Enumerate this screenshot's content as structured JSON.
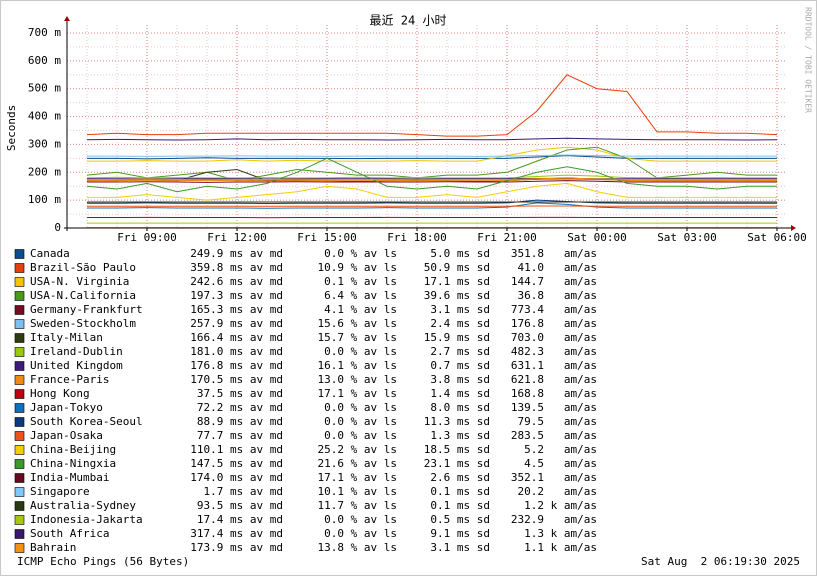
{
  "chart_data": {
    "type": "line",
    "title": "最近 24 小时",
    "y_label": "Seconds",
    "side_note": "RRDTOOL / TOBI OETIKER",
    "footer_left": "ICMP Echo Pings (56 Bytes)",
    "footer_right": "Sat Aug  2 06:19:30 2025",
    "grid": true,
    "ylim": [
      0,
      0.7
    ],
    "yticks": [
      0,
      {
        "value": 0.1,
        "label": "100 m"
      },
      {
        "value": 0.2,
        "label": "200 m"
      },
      {
        "value": 0.3,
        "label": "300 m"
      },
      {
        "value": 0.4,
        "label": "400 m"
      },
      {
        "value": 0.5,
        "label": "500 m"
      },
      {
        "value": 0.6,
        "label": "600 m"
      },
      {
        "value": 0.7,
        "label": "700 m"
      }
    ],
    "categories": [
      null,
      null,
      "Fri 09:00",
      null,
      null,
      "Fri 12:00",
      null,
      null,
      "Fri 15:00",
      null,
      null,
      "Fri 18:00",
      null,
      null,
      "Fri 21:00",
      null,
      null,
      "Sat 00:00",
      null,
      null,
      "Sat 03:00",
      null,
      null,
      "Sat 06:00"
    ],
    "series": [
      {
        "name": "Canada",
        "color": "#0a4d8c",
        "stats": [
          "249.9 ms av md",
          "0.0 % av ls",
          "5.0 ms sd",
          "351.8   am/as"
        ],
        "values": [
          0.25,
          0.25,
          0.248,
          0.25,
          0.252,
          0.25,
          0.25,
          0.25,
          0.25,
          0.249,
          0.25,
          0.25,
          0.25,
          0.25,
          0.25,
          0.255,
          0.26,
          0.255,
          0.25,
          0.25,
          0.25,
          0.25,
          0.25,
          0.25
        ]
      },
      {
        "name": "Brazil-São Paulo",
        "color": "#e8400a",
        "stats": [
          "359.8 ms av md",
          "10.9 % av ls",
          "50.9 ms sd",
          "41.0   am/as"
        ],
        "values": [
          0.335,
          0.34,
          0.335,
          0.335,
          0.34,
          0.34,
          0.34,
          0.34,
          0.34,
          0.34,
          0.34,
          0.335,
          0.33,
          0.33,
          0.335,
          0.42,
          0.55,
          0.5,
          0.49,
          0.345,
          0.345,
          0.34,
          0.34,
          0.335
        ]
      },
      {
        "name": "USA-N. Virginia",
        "color": "#f5c400",
        "stats": [
          "242.6 ms av md",
          "0.1 % av ls",
          "17.1 ms sd",
          "144.7   am/as"
        ],
        "values": [
          0.24,
          0.24,
          0.242,
          0.24,
          0.24,
          0.245,
          0.24,
          0.243,
          0.24,
          0.24,
          0.24,
          0.242,
          0.24,
          0.24,
          0.26,
          0.28,
          0.29,
          0.28,
          0.25,
          0.24,
          0.24,
          0.24,
          0.24,
          0.24
        ]
      },
      {
        "name": "USA-N.California",
        "color": "#4a9a1a",
        "stats": [
          "197.3 ms av md",
          "6.4 % av ls",
          "39.6 ms sd",
          "36.8   am/as"
        ],
        "values": [
          0.19,
          0.2,
          0.18,
          0.19,
          0.2,
          0.17,
          0.19,
          0.21,
          0.2,
          0.19,
          0.19,
          0.18,
          0.19,
          0.19,
          0.2,
          0.24,
          0.28,
          0.29,
          0.25,
          0.18,
          0.19,
          0.2,
          0.19,
          0.19
        ]
      },
      {
        "name": "Germany-Frankfurt",
        "color": "#7a0a22",
        "stats": [
          "165.3 ms av md",
          "4.1 % av ls",
          "3.1 ms sd",
          "773.4   am/as"
        ],
        "values": [
          0.165,
          0.165,
          0.166,
          0.165,
          0.164,
          0.165,
          0.165,
          0.166,
          0.165,
          0.165,
          0.165,
          0.165,
          0.166,
          0.165,
          0.165,
          0.168,
          0.17,
          0.168,
          0.165,
          0.165,
          0.165,
          0.165,
          0.165,
          0.165
        ]
      },
      {
        "name": "Sweden-Stockholm",
        "color": "#7cc0f0",
        "stats": [
          "257.9 ms av md",
          "15.6 % av ls",
          "2.4 ms sd",
          "176.8   am/as"
        ],
        "values": [
          0.258,
          0.258,
          0.257,
          0.258,
          0.258,
          0.259,
          0.258,
          0.258,
          0.257,
          0.258,
          0.258,
          0.258,
          0.258,
          0.257,
          0.258,
          0.26,
          0.262,
          0.26,
          0.258,
          0.258,
          0.258,
          0.258,
          0.258,
          0.258
        ]
      },
      {
        "name": "Italy-Milan",
        "color": "#2e3d10",
        "stats": [
          "166.4 ms av md",
          "15.7 % av ls",
          "15.9 ms sd",
          "703.0   am/as"
        ],
        "values": [
          0.17,
          0.17,
          0.175,
          0.17,
          0.2,
          0.21,
          0.17,
          0.17,
          0.17,
          0.168,
          0.17,
          0.17,
          0.17,
          0.168,
          0.17,
          0.175,
          0.18,
          0.175,
          0.17,
          0.17,
          0.17,
          0.17,
          0.17,
          0.17
        ]
      },
      {
        "name": "Ireland-Dublin",
        "color": "#9ac80a",
        "stats": [
          "181.0 ms av md",
          "0.0 % av ls",
          "2.7 ms sd",
          "482.3   am/as"
        ],
        "values": [
          0.18,
          0.182,
          0.18,
          0.181,
          0.18,
          0.18,
          0.181,
          0.18,
          0.18,
          0.182,
          0.18,
          0.181,
          0.18,
          0.18,
          0.18,
          0.185,
          0.19,
          0.186,
          0.181,
          0.18,
          0.18,
          0.181,
          0.18,
          0.18
        ]
      },
      {
        "name": "United Kingdom",
        "color": "#3c1a80",
        "stats": [
          "176.8 ms av md",
          "16.1 % av ls",
          "0.7 ms sd",
          "631.1   am/as"
        ],
        "values": [
          0.177,
          0.177,
          0.176,
          0.177,
          0.177,
          0.177,
          0.176,
          0.177,
          0.177,
          0.177,
          0.177,
          0.176,
          0.177,
          0.177,
          0.177,
          0.178,
          0.178,
          0.177,
          0.177,
          0.177,
          0.177,
          0.177,
          0.177,
          0.177
        ]
      },
      {
        "name": "France-Paris",
        "color": "#f08a10",
        "stats": [
          "170.5 ms av md",
          "13.0 % av ls",
          "3.8 ms sd",
          "621.8   am/as"
        ],
        "values": [
          0.17,
          0.171,
          0.17,
          0.17,
          0.171,
          0.17,
          0.17,
          0.171,
          0.17,
          0.17,
          0.17,
          0.171,
          0.17,
          0.17,
          0.17,
          0.175,
          0.178,
          0.174,
          0.171,
          0.17,
          0.17,
          0.17,
          0.171,
          0.17
        ]
      },
      {
        "name": "Hong Kong",
        "color": "#c00010",
        "stats": [
          "37.5 ms av md",
          "17.1 % av ls",
          "1.4 ms sd",
          "168.8   am/as"
        ],
        "values": [
          0.0375,
          0.0375,
          0.038,
          0.0375,
          0.0375,
          0.0375,
          0.037,
          0.0375,
          0.0375,
          0.0375,
          0.038,
          0.0375,
          0.0375,
          0.0375,
          0.0375,
          0.038,
          0.038,
          0.0375,
          0.0375,
          0.0375,
          0.0375,
          0.0375,
          0.0375,
          0.0375
        ]
      },
      {
        "name": "Japan-Tokyo",
        "color": "#1070c0",
        "stats": [
          "72.2 ms av md",
          "0.0 % av ls",
          "8.0 ms sd",
          "139.5   am/as"
        ],
        "values": [
          0.072,
          0.072,
          0.073,
          0.072,
          0.072,
          0.072,
          0.071,
          0.072,
          0.072,
          0.072,
          0.073,
          0.072,
          0.072,
          0.072,
          0.075,
          0.09,
          0.085,
          0.075,
          0.072,
          0.072,
          0.072,
          0.072,
          0.072,
          0.072
        ]
      },
      {
        "name": "South Korea-Seoul",
        "color": "#0a3a80",
        "stats": [
          "88.9 ms av md",
          "0.0 % av ls",
          "11.3 ms sd",
          "79.5   am/as"
        ],
        "values": [
          0.089,
          0.089,
          0.09,
          0.089,
          0.089,
          0.089,
          0.088,
          0.089,
          0.089,
          0.089,
          0.09,
          0.089,
          0.089,
          0.089,
          0.09,
          0.1,
          0.095,
          0.09,
          0.089,
          0.089,
          0.089,
          0.089,
          0.089,
          0.089
        ]
      },
      {
        "name": "Japan-Osaka",
        "color": "#f0501a",
        "stats": [
          "77.7 ms av md",
          "0.0 % av ls",
          "1.3 ms sd",
          "283.5   am/as"
        ],
        "values": [
          0.078,
          0.078,
          0.078,
          0.078,
          0.078,
          0.078,
          0.078,
          0.078,
          0.078,
          0.078,
          0.078,
          0.078,
          0.078,
          0.078,
          0.078,
          0.079,
          0.079,
          0.078,
          0.078,
          0.078,
          0.078,
          0.078,
          0.078,
          0.078
        ]
      },
      {
        "name": "China-Beijing",
        "color": "#f2d000",
        "stats": [
          "110.1 ms av md",
          "25.2 % av ls",
          "18.5 ms sd",
          "5.2   am/as"
        ],
        "values": [
          0.11,
          0.11,
          0.12,
          0.11,
          0.1,
          0.11,
          0.12,
          0.13,
          0.15,
          0.14,
          0.11,
          0.11,
          0.12,
          0.11,
          0.13,
          0.15,
          0.16,
          0.13,
          0.11,
          0.11,
          0.11,
          0.11,
          0.11,
          0.11
        ]
      },
      {
        "name": "China-Ningxia",
        "color": "#3a9a2a",
        "stats": [
          "147.5 ms av md",
          "21.6 % av ls",
          "23.1 ms sd",
          "4.5   am/as"
        ],
        "values": [
          0.15,
          0.14,
          0.16,
          0.13,
          0.15,
          0.14,
          0.16,
          0.2,
          0.25,
          0.2,
          0.15,
          0.14,
          0.15,
          0.14,
          0.17,
          0.2,
          0.22,
          0.2,
          0.16,
          0.15,
          0.15,
          0.14,
          0.15,
          0.15
        ]
      },
      {
        "name": "India-Mumbai",
        "color": "#6a0a20",
        "stats": [
          "174.0 ms av md",
          "17.1 % av ls",
          "2.6 ms sd",
          "352.1   am/as"
        ],
        "values": [
          0.174,
          0.174,
          0.175,
          0.174,
          0.174,
          0.174,
          0.173,
          0.174,
          0.174,
          0.174,
          0.175,
          0.174,
          0.174,
          0.174,
          0.174,
          0.176,
          0.177,
          0.175,
          0.174,
          0.174,
          0.174,
          0.174,
          0.174,
          0.174
        ]
      },
      {
        "name": "Singapore",
        "color": "#80c8f8",
        "stats": [
          "1.7 ms av md",
          "10.1 % av ls",
          "0.1 ms sd",
          "20.2   am/as"
        ],
        "values": [
          0.0017,
          0.0017,
          0.0017,
          0.0017,
          0.0017,
          0.0017,
          0.0017,
          0.0017,
          0.0017,
          0.0017,
          0.0017,
          0.0017,
          0.0017,
          0.0017,
          0.0017,
          0.0017,
          0.0017,
          0.0017,
          0.0017,
          0.0017,
          0.0017,
          0.0017,
          0.0017,
          0.0017
        ]
      },
      {
        "name": "Australia-Sydney",
        "color": "#2a3a10",
        "stats": [
          "93.5 ms av md",
          "11.7 % av ls",
          "0.1 ms sd",
          "1.2 k am/as"
        ],
        "values": [
          0.0935,
          0.0935,
          0.0935,
          0.0935,
          0.0935,
          0.0935,
          0.0935,
          0.0935,
          0.0935,
          0.0935,
          0.0935,
          0.0935,
          0.0935,
          0.0935,
          0.0935,
          0.0935,
          0.0935,
          0.0935,
          0.0935,
          0.0935,
          0.0935,
          0.0935,
          0.0935,
          0.0935
        ]
      },
      {
        "name": "Indonesia-Jakarta",
        "color": "#a8c810",
        "stats": [
          "17.4 ms av md",
          "0.0 % av ls",
          "0.5 ms sd",
          "232.9   am/as"
        ],
        "values": [
          0.0174,
          0.0174,
          0.0174,
          0.0174,
          0.0174,
          0.0174,
          0.0174,
          0.0174,
          0.0174,
          0.0174,
          0.0174,
          0.0174,
          0.0174,
          0.0174,
          0.0174,
          0.0174,
          0.0174,
          0.0174,
          0.0174,
          0.0174,
          0.0174,
          0.0174,
          0.0174,
          0.0174
        ]
      },
      {
        "name": "South Africa",
        "color": "#3a1670",
        "stats": [
          "317.4 ms av md",
          "0.0 % av ls",
          "9.1 ms sd",
          "1.3 k am/as"
        ],
        "values": [
          0.317,
          0.318,
          0.317,
          0.316,
          0.317,
          0.32,
          0.317,
          0.318,
          0.317,
          0.317,
          0.316,
          0.317,
          0.318,
          0.317,
          0.317,
          0.32,
          0.322,
          0.32,
          0.318,
          0.317,
          0.317,
          0.317,
          0.316,
          0.317
        ]
      },
      {
        "name": "Bahrain",
        "color": "#f59010",
        "stats": [
          "173.9 ms av md",
          "13.8 % av ls",
          "3.1 ms sd",
          "1.1 k am/as"
        ],
        "values": [
          0.174,
          0.174,
          0.175,
          0.174,
          0.173,
          0.174,
          0.174,
          0.175,
          0.174,
          0.174,
          0.174,
          0.173,
          0.174,
          0.174,
          0.174,
          0.177,
          0.179,
          0.176,
          0.174,
          0.174,
          0.174,
          0.174,
          0.174,
          0.174
        ]
      }
    ]
  }
}
